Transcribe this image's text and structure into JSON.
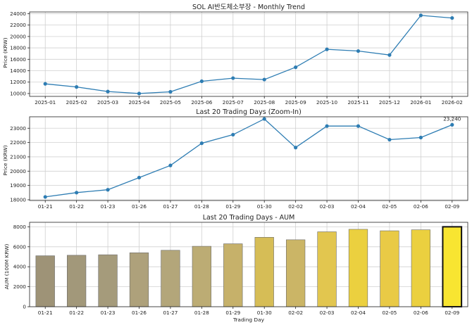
{
  "chart_data": [
    {
      "type": "line",
      "title": "SOL AI반도체소부장 - Monthly Trend",
      "xlabel": "",
      "ylabel": "Price (KRW)",
      "ylim": [
        9500,
        24300
      ],
      "yticks": [
        10000,
        12000,
        14000,
        16000,
        18000,
        20000,
        22000,
        24000
      ],
      "grid": true,
      "color": "#2e7db3",
      "categories": [
        "2025-01",
        "2025-02",
        "2025-03",
        "2025-04",
        "2025-05",
        "2025-06",
        "2025-07",
        "2025-08",
        "2025-09",
        "2025-10",
        "2025-11",
        "2025-12",
        "2026-01",
        "2026-02"
      ],
      "values": [
        11700,
        11150,
        10350,
        10000,
        10300,
        12150,
        12700,
        12450,
        14600,
        17750,
        17450,
        16750,
        23700,
        23240
      ]
    },
    {
      "type": "line",
      "title": "Last 20 Trading Days (Zoom-In)",
      "xlabel": "",
      "ylabel": "Price (KRW)",
      "ylim": [
        17950,
        23800
      ],
      "yticks": [
        18000,
        19000,
        20000,
        21000,
        22000,
        23000
      ],
      "grid": true,
      "color": "#2e7db3",
      "categories": [
        "01-21",
        "01-22",
        "01-23",
        "01-26",
        "01-27",
        "01-28",
        "01-29",
        "01-30",
        "02-02",
        "02-03",
        "02-04",
        "02-05",
        "02-06",
        "02-09"
      ],
      "values": [
        18200,
        18500,
        18700,
        19550,
        20400,
        21950,
        22550,
        23650,
        21650,
        23150,
        23150,
        22200,
        22350,
        23240
      ],
      "annotations": [
        {
          "index": 13,
          "text": "23,240"
        }
      ]
    },
    {
      "type": "bar",
      "title": "Last 20 Trading Days - AUM",
      "xlabel": "Trading Day",
      "ylabel": "AUM (100M KRW)",
      "ylim": [
        0,
        8450
      ],
      "yticks": [
        0,
        2000,
        4000,
        6000,
        8000
      ],
      "grid": true,
      "categories": [
        "01-21",
        "01-22",
        "01-23",
        "01-26",
        "01-27",
        "01-28",
        "01-29",
        "01-30",
        "02-02",
        "02-03",
        "02-04",
        "02-05",
        "02-06",
        "02-09"
      ],
      "values": [
        5100,
        5150,
        5200,
        5400,
        5650,
        6050,
        6300,
        6950,
        6700,
        7500,
        7750,
        7600,
        7700,
        8000
      ],
      "colors": [
        "#9e9377",
        "#a2987a",
        "#a59b7b",
        "#aea17b",
        "#b3a67a",
        "#bcac74",
        "#c6b16a",
        "#d6bd56",
        "#cbb566",
        "#e2c64f",
        "#ebd03f",
        "#e9ca46",
        "#ebd03f",
        "#f8e531"
      ],
      "highlight_index": 13
    }
  ]
}
